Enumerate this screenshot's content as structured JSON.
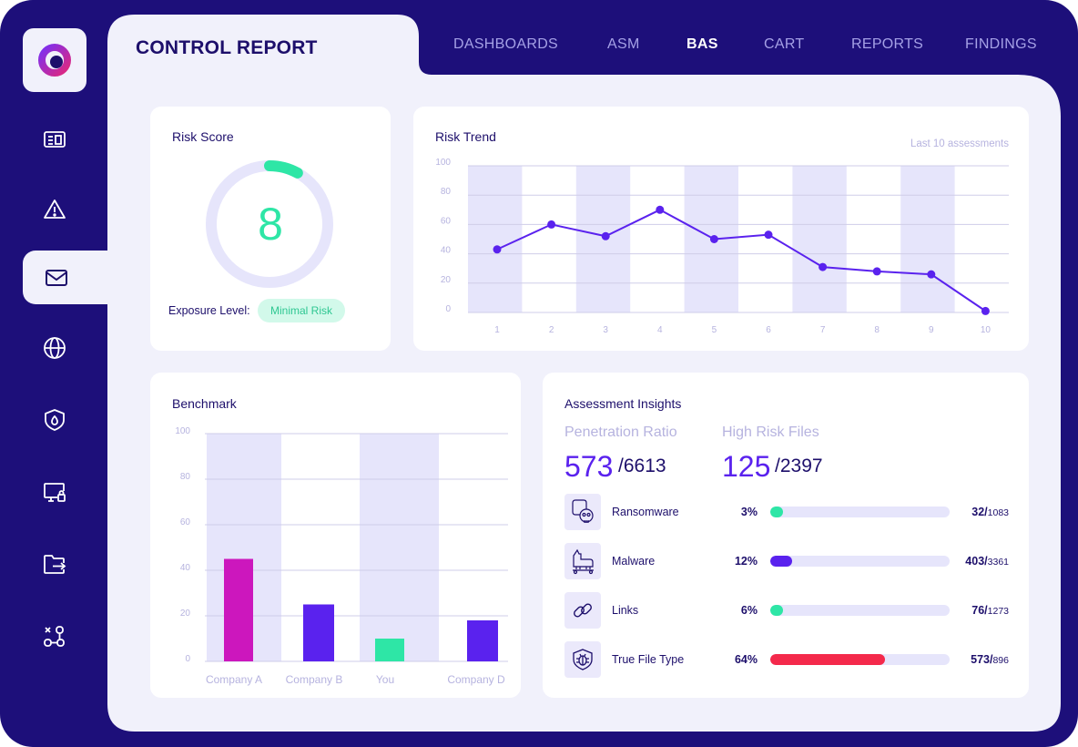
{
  "colors": {
    "frame": "#1d0f7a",
    "panel": "#f1f1fb",
    "accent_purple": "#5a22ee",
    "accent_green": "#2ee6a6",
    "accent_magenta": "#cc17bd",
    "accent_red": "#f4294b"
  },
  "header": {
    "title": "CONTROL REPORT",
    "nav": [
      {
        "label": "DASHBOARDS",
        "active": false
      },
      {
        "label": "ASM",
        "active": false
      },
      {
        "label": "BAS",
        "active": true
      },
      {
        "label": "CART",
        "active": false
      },
      {
        "label": "REPORTS",
        "active": false
      },
      {
        "label": "FINDINGS",
        "active": false
      }
    ]
  },
  "sidebar": {
    "logo_icon": "ring-logo-icon",
    "items": [
      {
        "icon": "report-icon",
        "active": false
      },
      {
        "icon": "warning-icon",
        "active": false
      },
      {
        "icon": "mail-icon",
        "active": true
      },
      {
        "icon": "globe-icon",
        "active": false
      },
      {
        "icon": "shield-fire-icon",
        "active": false
      },
      {
        "icon": "monitor-lock-icon",
        "active": false
      },
      {
        "icon": "folder-export-icon",
        "active": false
      },
      {
        "icon": "network-icon",
        "active": false
      }
    ]
  },
  "risk_score": {
    "title": "Risk Score",
    "value": "8",
    "gauge_fraction": 0.08,
    "exposure_label": "Exposure Level:",
    "exposure_value": "Minimal Risk"
  },
  "chart_data": [
    {
      "type": "line",
      "title": "Risk Trend",
      "subtitle": "Last 10 assessments",
      "x": [
        1,
        2,
        3,
        4,
        5,
        6,
        7,
        8,
        9,
        10
      ],
      "values": [
        43,
        60,
        52,
        70,
        50,
        53,
        31,
        28,
        26,
        1
      ],
      "ylim": [
        0,
        100
      ],
      "yticks": [
        0,
        20,
        40,
        60,
        80,
        100
      ],
      "color": "#5a22ee"
    },
    {
      "type": "bar",
      "title": "Benchmark",
      "categories": [
        "Company A",
        "Company B",
        "You",
        "Company D"
      ],
      "values": [
        45,
        25,
        10,
        18
      ],
      "colors": [
        "#cc17bd",
        "#5a22ee",
        "#2ee6a6",
        "#5a22ee"
      ],
      "ylim": [
        0,
        100
      ],
      "yticks": [
        0,
        20,
        40,
        60,
        80,
        100
      ]
    }
  ],
  "insights": {
    "title": "Assessment Insights",
    "penetration": {
      "label": "Penetration Ratio",
      "value": "573",
      "total": "/6613"
    },
    "high_risk": {
      "label": "High Risk Files",
      "value": "125",
      "total": "/2397"
    },
    "rows": [
      {
        "icon": "ransomware-skull-icon",
        "label": "Ransomware",
        "pct": "3%",
        "fraction": 0.03,
        "color": "#2ee6a6",
        "count": "32/",
        "total": "1083"
      },
      {
        "icon": "trojan-horse-icon",
        "label": "Malware",
        "pct": "12%",
        "fraction": 0.12,
        "color": "#5a22ee",
        "count": "403/",
        "total": "3361"
      },
      {
        "icon": "link-icon",
        "label": "Links",
        "pct": "6%",
        "fraction": 0.06,
        "color": "#2ee6a6",
        "count": "76/",
        "total": "1273"
      },
      {
        "icon": "bug-shield-icon",
        "label": "True File Type",
        "pct": "64%",
        "fraction": 0.64,
        "color": "#f4294b",
        "count": "573/",
        "total": "896"
      }
    ]
  }
}
